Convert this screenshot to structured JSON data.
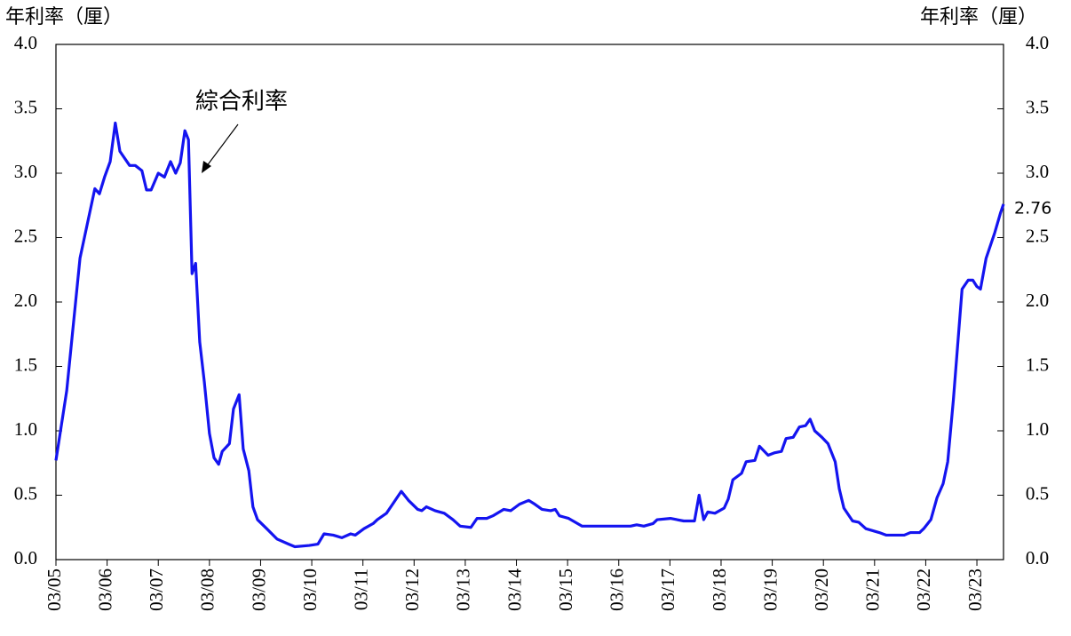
{
  "chart_data": {
    "type": "line",
    "y_label": "年利率（厘）",
    "y2_label": "年利率（厘）",
    "x": [
      2005.17,
      2005.38,
      2005.64,
      2005.93,
      2006.02,
      2006.12,
      2006.23,
      2006.33,
      2006.42,
      2006.61,
      2006.72,
      2006.85,
      2006.94,
      2007.03,
      2007.17,
      2007.29,
      2007.41,
      2007.51,
      2007.6,
      2007.69,
      2007.76,
      2007.83,
      2007.9,
      2007.98,
      2008.07,
      2008.17,
      2008.26,
      2008.35,
      2008.42,
      2008.56,
      2008.64,
      2008.75,
      2008.83,
      2008.94,
      2009.02,
      2009.11,
      2009.29,
      2009.49,
      2009.72,
      2009.84,
      2010.12,
      2010.29,
      2010.41,
      2010.59,
      2010.76,
      2010.93,
      2011.02,
      2011.19,
      2011.37,
      2011.45,
      2011.63,
      2011.75,
      2011.92,
      2012.06,
      2012.24,
      2012.32,
      2012.41,
      2012.58,
      2012.76,
      2012.93,
      2013.07,
      2013.28,
      2013.4,
      2013.59,
      2013.71,
      2013.92,
      2014.06,
      2014.23,
      2014.41,
      2014.53,
      2014.67,
      2014.84,
      2014.93,
      2015.01,
      2015.19,
      2015.45,
      2015.71,
      2016.4,
      2016.52,
      2016.66,
      2016.84,
      2016.92,
      2017.18,
      2017.44,
      2017.65,
      2017.74,
      2017.83,
      2017.91,
      2018.05,
      2018.23,
      2018.31,
      2018.4,
      2018.57,
      2018.66,
      2018.83,
      2018.92,
      2019.09,
      2019.22,
      2019.35,
      2019.44,
      2019.58,
      2019.7,
      2019.82,
      2019.91,
      2020.0,
      2020.14,
      2020.26,
      2020.4,
      2020.48,
      2020.57,
      2020.74,
      2020.86,
      2021.0,
      2021.26,
      2021.4,
      2021.75,
      2021.87,
      2022.05,
      2022.13,
      2022.27,
      2022.39,
      2022.51,
      2022.6,
      2022.71,
      2022.88,
      2023.0,
      2023.09,
      2023.17,
      2023.24,
      2023.35,
      2023.52,
      2023.63,
      2023.69
    ],
    "series": [
      {
        "name": "綜合利率",
        "color": "#1414f0",
        "values": [
          0.77,
          1.31,
          2.34,
          2.88,
          2.84,
          2.97,
          3.09,
          3.39,
          3.17,
          3.06,
          3.06,
          3.02,
          2.87,
          2.87,
          3.0,
          2.97,
          3.09,
          3.0,
          3.08,
          3.33,
          3.26,
          2.22,
          2.3,
          1.69,
          1.38,
          0.98,
          0.79,
          0.74,
          0.84,
          0.9,
          1.17,
          1.28,
          0.86,
          0.69,
          0.41,
          0.31,
          0.24,
          0.16,
          0.12,
          0.1,
          0.11,
          0.12,
          0.2,
          0.19,
          0.17,
          0.2,
          0.19,
          0.24,
          0.28,
          0.31,
          0.36,
          0.43,
          0.53,
          0.46,
          0.39,
          0.38,
          0.41,
          0.38,
          0.36,
          0.31,
          0.26,
          0.25,
          0.32,
          0.32,
          0.34,
          0.39,
          0.38,
          0.43,
          0.46,
          0.43,
          0.39,
          0.38,
          0.39,
          0.34,
          0.32,
          0.26,
          0.26,
          0.26,
          0.27,
          0.26,
          0.28,
          0.31,
          0.32,
          0.3,
          0.3,
          0.5,
          0.31,
          0.37,
          0.36,
          0.4,
          0.47,
          0.62,
          0.67,
          0.76,
          0.77,
          0.88,
          0.81,
          0.83,
          0.84,
          0.94,
          0.95,
          1.03,
          1.04,
          1.09,
          1.0,
          0.95,
          0.9,
          0.76,
          0.55,
          0.4,
          0.3,
          0.29,
          0.24,
          0.21,
          0.19,
          0.19,
          0.21,
          0.21,
          0.24,
          0.31,
          0.48,
          0.59,
          0.76,
          1.24,
          2.1,
          2.17,
          2.17,
          2.12,
          2.1,
          2.34,
          2.54,
          2.69,
          2.76
        ]
      }
    ],
    "xlim": [
      2005.17,
      2023.69
    ],
    "xticks": [
      {
        "value": 2005.17,
        "label": "03/05"
      },
      {
        "value": 2006.17,
        "label": "03/06"
      },
      {
        "value": 2007.17,
        "label": "03/07"
      },
      {
        "value": 2008.17,
        "label": "03/08"
      },
      {
        "value": 2009.17,
        "label": "03/09"
      },
      {
        "value": 2010.17,
        "label": "03/10"
      },
      {
        "value": 2011.17,
        "label": "03/11"
      },
      {
        "value": 2012.17,
        "label": "03/12"
      },
      {
        "value": 2013.17,
        "label": "03/13"
      },
      {
        "value": 2014.17,
        "label": "03/14"
      },
      {
        "value": 2015.17,
        "label": "03/15"
      },
      {
        "value": 2016.17,
        "label": "03/16"
      },
      {
        "value": 2017.17,
        "label": "03/17"
      },
      {
        "value": 2018.17,
        "label": "03/18"
      },
      {
        "value": 2019.17,
        "label": "03/19"
      },
      {
        "value": 2020.17,
        "label": "03/20"
      },
      {
        "value": 2021.17,
        "label": "03/21"
      },
      {
        "value": 2022.17,
        "label": "03/22"
      },
      {
        "value": 2023.17,
        "label": "03/23"
      }
    ],
    "ylim": [
      0,
      4
    ],
    "yticks": [
      {
        "value": 0,
        "label": "0.0"
      },
      {
        "value": 0.5,
        "label": "0.5"
      },
      {
        "value": 1,
        "label": "1.0"
      },
      {
        "value": 1.5,
        "label": "1.5"
      },
      {
        "value": 2,
        "label": "2.0"
      },
      {
        "value": 2.5,
        "label": "2.5"
      },
      {
        "value": 3,
        "label": "3.0"
      },
      {
        "value": 3.5,
        "label": "3.5"
      },
      {
        "value": 4,
        "label": "4.0"
      }
    ],
    "y2lim": [
      0,
      4
    ],
    "y2ticks": [
      {
        "value": 0,
        "label": "0.0"
      },
      {
        "value": 0.5,
        "label": "0.5"
      },
      {
        "value": 1,
        "label": "1.0"
      },
      {
        "value": 1.5,
        "label": "1.5"
      },
      {
        "value": 2,
        "label": "2.0"
      },
      {
        "value": 2.5,
        "label": "2.5"
      },
      {
        "value": 3,
        "label": "3.0"
      },
      {
        "value": 3.5,
        "label": "3.5"
      },
      {
        "value": 4,
        "label": "4.0"
      }
    ],
    "grid": false
  }
}
